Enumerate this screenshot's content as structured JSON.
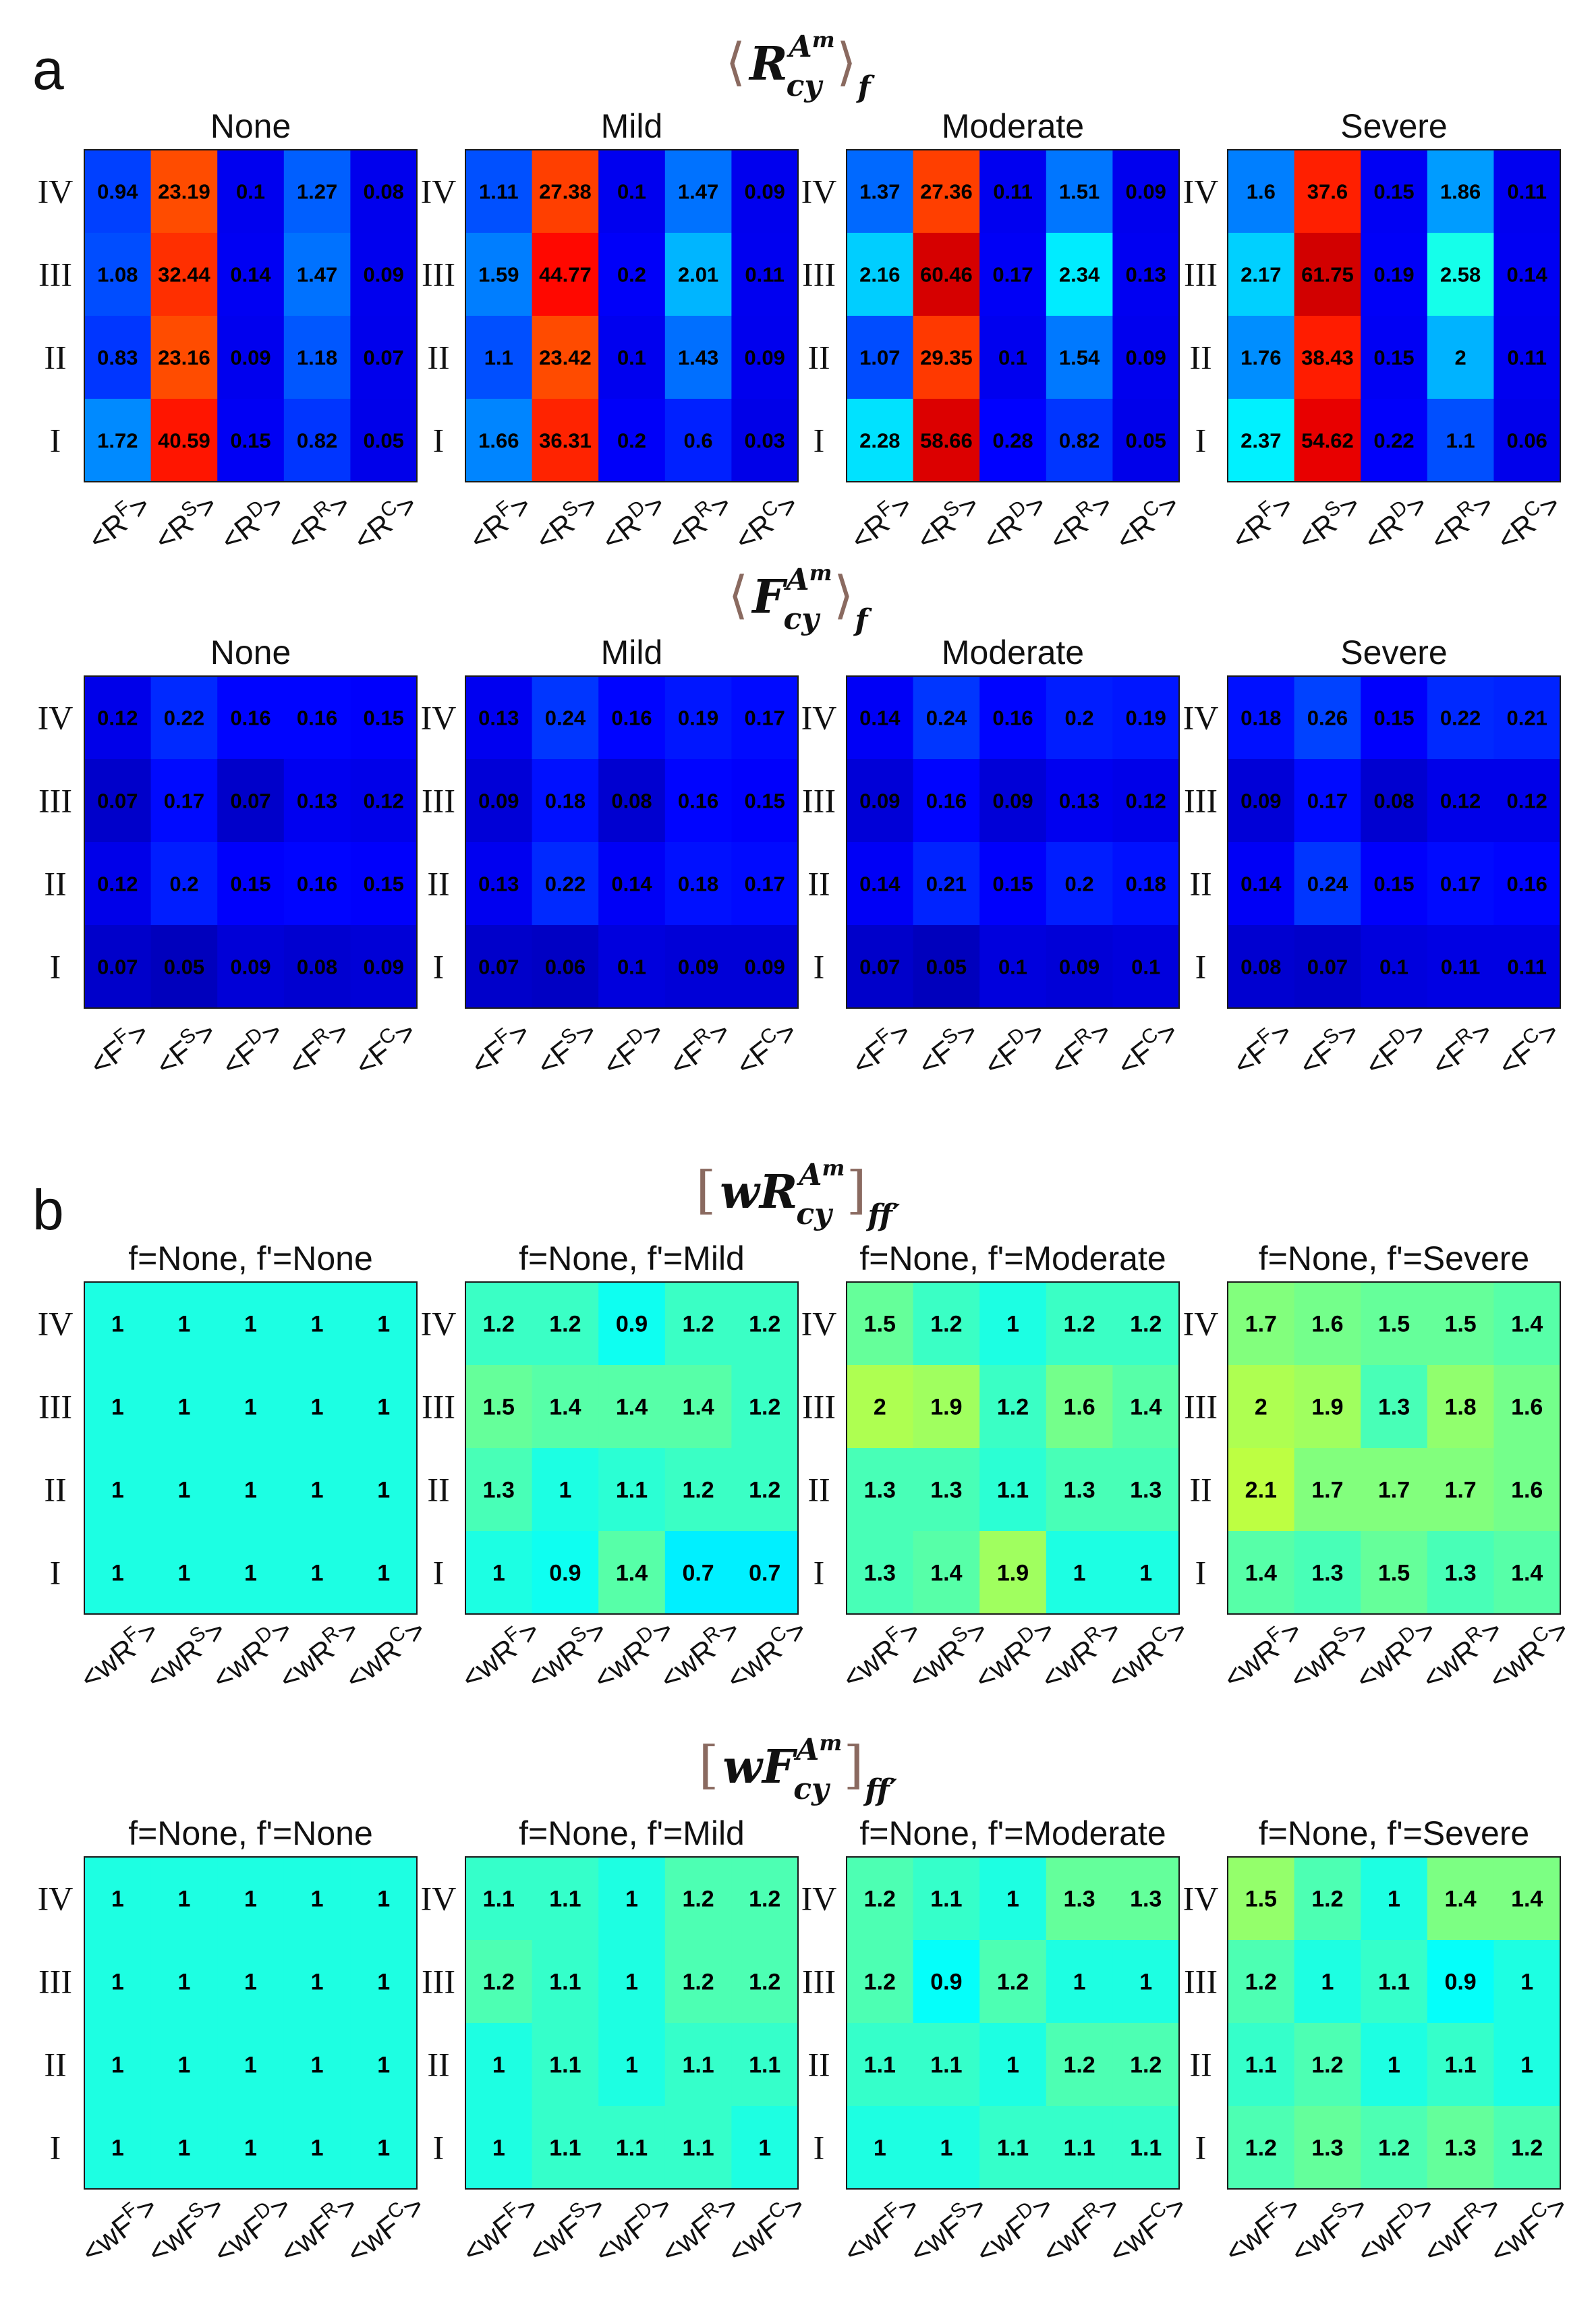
{
  "panel_labels": {
    "a": "a",
    "b": "b"
  },
  "row_labels": [
    "IV",
    "III",
    "II",
    "I"
  ],
  "chart_data": [
    {
      "type": "heatmap",
      "group": "a",
      "title": {
        "base": "R",
        "sub": "cy",
        "sup": "A",
        "supsub": "m",
        "index": "f",
        "brackets": "angle"
      },
      "columns": [
        "<R^F>",
        "<R^S>",
        "<R^D>",
        "<R^R>",
        "<R^C>"
      ],
      "col_base": "R",
      "col_prefix": "<",
      "col_sups": [
        "F",
        "S",
        "D",
        "R",
        "C"
      ],
      "rows": [
        "IV",
        "III",
        "II",
        "I"
      ],
      "maps": [
        {
          "title": "None",
          "values": [
            [
              0.94,
              23.19,
              0.1,
              1.27,
              0.08
            ],
            [
              1.08,
              32.44,
              0.14,
              1.47,
              0.09
            ],
            [
              0.83,
              23.16,
              0.09,
              1.18,
              0.07
            ],
            [
              1.72,
              40.59,
              0.15,
              0.82,
              0.05
            ]
          ]
        },
        {
          "title": "Mild",
          "values": [
            [
              1.11,
              27.38,
              0.1,
              1.47,
              0.09
            ],
            [
              1.59,
              44.77,
              0.2,
              2.01,
              0.11
            ],
            [
              1.1,
              23.42,
              0.1,
              1.43,
              0.09
            ],
            [
              1.66,
              36.31,
              0.2,
              0.6,
              0.03
            ]
          ]
        },
        {
          "title": "Moderate",
          "values": [
            [
              1.37,
              27.36,
              0.11,
              1.51,
              0.09
            ],
            [
              2.16,
              60.46,
              0.17,
              2.34,
              0.13
            ],
            [
              1.07,
              29.35,
              0.1,
              1.54,
              0.09
            ],
            [
              2.28,
              58.66,
              0.28,
              0.82,
              0.05
            ]
          ]
        },
        {
          "title": "Severe",
          "values": [
            [
              1.6,
              37.6,
              0.15,
              1.86,
              0.11
            ],
            [
              2.17,
              61.75,
              0.19,
              2.58,
              0.14
            ],
            [
              1.76,
              38.43,
              0.15,
              2,
              0.11
            ],
            [
              2.37,
              54.62,
              0.22,
              1.1,
              0.06
            ]
          ]
        }
      ]
    },
    {
      "type": "heatmap",
      "group": "a",
      "title": {
        "base": "F",
        "sub": "cy",
        "sup": "A",
        "supsub": "m",
        "index": "f",
        "brackets": "angle"
      },
      "columns": [
        "<F^F>",
        "<F^S>",
        "<F^D>",
        "<F^R>",
        "<F^C>"
      ],
      "col_base": "F",
      "col_prefix": "<",
      "col_sups": [
        "F",
        "S",
        "D",
        "R",
        "C"
      ],
      "rows": [
        "IV",
        "III",
        "II",
        "I"
      ],
      "maps": [
        {
          "title": "None",
          "values": [
            [
              0.12,
              0.22,
              0.16,
              0.16,
              0.15
            ],
            [
              0.07,
              0.17,
              0.07,
              0.13,
              0.12
            ],
            [
              0.12,
              0.2,
              0.15,
              0.16,
              0.15
            ],
            [
              0.07,
              0.05,
              0.09,
              0.08,
              0.09
            ]
          ]
        },
        {
          "title": "Mild",
          "values": [
            [
              0.13,
              0.24,
              0.16,
              0.19,
              0.17
            ],
            [
              0.09,
              0.18,
              0.08,
              0.16,
              0.15
            ],
            [
              0.13,
              0.22,
              0.14,
              0.18,
              0.17
            ],
            [
              0.07,
              0.06,
              0.1,
              0.09,
              0.09
            ]
          ]
        },
        {
          "title": "Moderate",
          "values": [
            [
              0.14,
              0.24,
              0.16,
              0.2,
              0.19
            ],
            [
              0.09,
              0.16,
              0.09,
              0.13,
              0.12
            ],
            [
              0.14,
              0.21,
              0.15,
              0.2,
              0.18
            ],
            [
              0.07,
              0.05,
              0.1,
              0.09,
              0.1
            ]
          ]
        },
        {
          "title": "Severe",
          "values": [
            [
              0.18,
              0.26,
              0.15,
              0.22,
              0.21
            ],
            [
              0.09,
              0.17,
              0.08,
              0.12,
              0.12
            ],
            [
              0.14,
              0.24,
              0.15,
              0.17,
              0.16
            ],
            [
              0.08,
              0.07,
              0.1,
              0.11,
              0.11
            ]
          ]
        }
      ]
    },
    {
      "type": "heatmap",
      "group": "b",
      "title": {
        "base": "wR",
        "sub": "cy",
        "sup": "A",
        "supsub": "m",
        "index": "ff′",
        "brackets": "square"
      },
      "columns": [
        "<wR^F>",
        "<wR^S>",
        "<wR^D>",
        "<wR^R>",
        "<wR^C>"
      ],
      "col_base": "wR",
      "col_prefix": "<",
      "col_sups": [
        "F",
        "S",
        "D",
        "R",
        "C"
      ],
      "rows": [
        "IV",
        "III",
        "II",
        "I"
      ],
      "maps": [
        {
          "title": "f=None, f'=None",
          "values": [
            [
              1,
              1,
              1,
              1,
              1
            ],
            [
              1,
              1,
              1,
              1,
              1
            ],
            [
              1,
              1,
              1,
              1,
              1
            ],
            [
              1,
              1,
              1,
              1,
              1
            ]
          ]
        },
        {
          "title": "f=None, f'=Mild",
          "values": [
            [
              1.2,
              1.2,
              0.9,
              1.2,
              1.2
            ],
            [
              1.5,
              1.4,
              1.4,
              1.4,
              1.2
            ],
            [
              1.3,
              1,
              1.1,
              1.2,
              1.2
            ],
            [
              1,
              0.9,
              1.4,
              0.7,
              0.7
            ]
          ]
        },
        {
          "title": "f=None, f'=Moderate",
          "values": [
            [
              1.5,
              1.2,
              1,
              1.2,
              1.2
            ],
            [
              2,
              1.9,
              1.2,
              1.6,
              1.4
            ],
            [
              1.3,
              1.3,
              1.1,
              1.3,
              1.3
            ],
            [
              1.3,
              1.4,
              1.9,
              1,
              1
            ]
          ]
        },
        {
          "title": "f=None, f'=Severe",
          "values": [
            [
              1.7,
              1.6,
              1.5,
              1.5,
              1.4
            ],
            [
              2,
              1.9,
              1.3,
              1.8,
              1.6
            ],
            [
              2.1,
              1.7,
              1.7,
              1.7,
              1.6
            ],
            [
              1.4,
              1.3,
              1.5,
              1.3,
              1.4
            ]
          ]
        }
      ]
    },
    {
      "type": "heatmap",
      "group": "b",
      "title": {
        "base": "wF",
        "sub": "cy",
        "sup": "A",
        "supsub": "m",
        "index": "ff′",
        "brackets": "square"
      },
      "columns": [
        "<wF^F>",
        "<wF^S>",
        "<wF^D>",
        "<wF^R>",
        "<wF^C>"
      ],
      "col_base": "wF",
      "col_prefix": "<",
      "col_sups": [
        "F",
        "S",
        "D",
        "R",
        "C"
      ],
      "rows": [
        "IV",
        "III",
        "II",
        "I"
      ],
      "maps": [
        {
          "title": "f=None, f'=None",
          "values": [
            [
              1,
              1,
              1,
              1,
              1
            ],
            [
              1,
              1,
              1,
              1,
              1
            ],
            [
              1,
              1,
              1,
              1,
              1
            ],
            [
              1,
              1,
              1,
              1,
              1
            ]
          ]
        },
        {
          "title": "f=None, f'=Mild",
          "values": [
            [
              1.1,
              1.1,
              1,
              1.2,
              1.2
            ],
            [
              1.2,
              1.1,
              1,
              1.2,
              1.2
            ],
            [
              1,
              1.1,
              1,
              1.1,
              1.1
            ],
            [
              1,
              1.1,
              1.1,
              1.1,
              1
            ]
          ]
        },
        {
          "title": "f=None, f'=Moderate",
          "values": [
            [
              1.2,
              1.1,
              1,
              1.3,
              1.3
            ],
            [
              1.2,
              0.9,
              1.2,
              1,
              1
            ],
            [
              1.1,
              1.1,
              1,
              1.2,
              1.2
            ],
            [
              1,
              1,
              1.1,
              1.1,
              1.1
            ]
          ]
        },
        {
          "title": "f=None, f'=Severe",
          "values": [
            [
              1.5,
              1.2,
              1,
              1.4,
              1.4
            ],
            [
              1.2,
              1,
              1.1,
              0.9,
              1
            ],
            [
              1.1,
              1.2,
              1,
              1.1,
              1
            ],
            [
              1.2,
              1.3,
              1.2,
              1.3,
              1.2
            ]
          ]
        }
      ]
    }
  ]
}
